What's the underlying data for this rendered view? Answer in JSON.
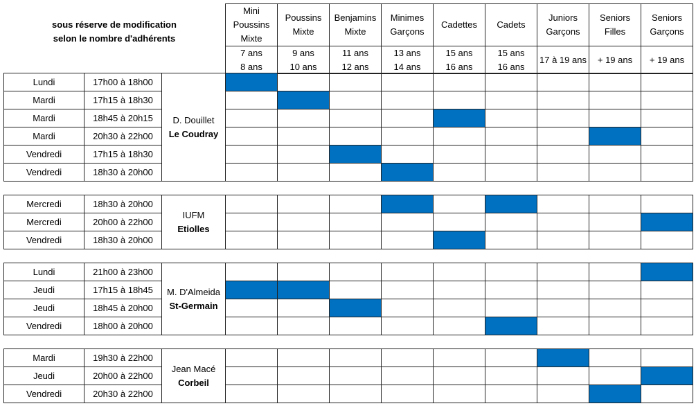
{
  "note": [
    "sous réserve de modification",
    "selon le nombre d'adhérents"
  ],
  "categories": [
    {
      "name": [
        "Mini",
        "Poussins",
        "Mixte"
      ],
      "ages": [
        "7 ans",
        "8 ans"
      ]
    },
    {
      "name": [
        "Poussins",
        "Mixte"
      ],
      "ages": [
        "9 ans",
        "10 ans"
      ]
    },
    {
      "name": [
        "Benjamins",
        "Mixte"
      ],
      "ages": [
        "11 ans",
        "12 ans"
      ]
    },
    {
      "name": [
        "Minimes",
        "Garçons"
      ],
      "ages": [
        "13 ans",
        "14 ans"
      ]
    },
    {
      "name": [
        "Cadettes"
      ],
      "ages": [
        "15 ans",
        "16 ans"
      ]
    },
    {
      "name": [
        "Cadets"
      ],
      "ages": [
        "15 ans",
        "16 ans"
      ]
    },
    {
      "name": [
        "Juniors",
        "Garçons"
      ],
      "ages": [
        "17 à 19 ans"
      ]
    },
    {
      "name": [
        "Seniors",
        "Filles"
      ],
      "ages": [
        "+ 19 ans"
      ]
    },
    {
      "name": [
        "Seniors",
        "Garçons"
      ],
      "ages": [
        "+ 19 ans"
      ]
    }
  ],
  "groups": [
    {
      "venue": "D. Douillet",
      "place": "Le Coudray",
      "sessions": [
        {
          "day": "Lundi",
          "time": "17h00 à 18h00",
          "slots": [
            true,
            false,
            false,
            false,
            false,
            false,
            false,
            false,
            false
          ]
        },
        {
          "day": "Mardi",
          "time": "17h15 à 18h30",
          "slots": [
            false,
            true,
            false,
            false,
            false,
            false,
            false,
            false,
            false
          ]
        },
        {
          "day": "Mardi",
          "time": "18h45 à 20h15",
          "slots": [
            false,
            false,
            false,
            false,
            true,
            false,
            false,
            false,
            false
          ]
        },
        {
          "day": "Mardi",
          "time": "20h30 à 22h00",
          "slots": [
            false,
            false,
            false,
            false,
            false,
            false,
            false,
            true,
            false
          ]
        },
        {
          "day": "Vendredi",
          "time": "17h15 à 18h30",
          "slots": [
            false,
            false,
            true,
            false,
            false,
            false,
            false,
            false,
            false
          ]
        },
        {
          "day": "Vendredi",
          "time": "18h30 à 20h00",
          "slots": [
            false,
            false,
            false,
            true,
            false,
            false,
            false,
            false,
            false
          ]
        }
      ]
    },
    {
      "venue": "IUFM",
      "place": "Etiolles",
      "sessions": [
        {
          "day": "Mercredi",
          "time": "18h30 à 20h00",
          "slots": [
            false,
            false,
            false,
            true,
            false,
            true,
            false,
            false,
            false
          ]
        },
        {
          "day": "Mercredi",
          "time": "20h00 à 22h00",
          "slots": [
            false,
            false,
            false,
            false,
            false,
            false,
            false,
            false,
            true
          ]
        },
        {
          "day": "Vendredi",
          "time": "18h30 à 20h00",
          "slots": [
            false,
            false,
            false,
            false,
            true,
            false,
            false,
            false,
            false
          ]
        }
      ]
    },
    {
      "venue": "M. D'Almeida",
      "place": "St-Germain",
      "sessions": [
        {
          "day": "Lundi",
          "time": "21h00 à 23h00",
          "slots": [
            false,
            false,
            false,
            false,
            false,
            false,
            false,
            false,
            true
          ]
        },
        {
          "day": "Jeudi",
          "time": "17h15 à 18h45",
          "slots": [
            true,
            true,
            false,
            false,
            false,
            false,
            false,
            false,
            false
          ]
        },
        {
          "day": "Jeudi",
          "time": "18h45 à 20h00",
          "slots": [
            false,
            false,
            true,
            false,
            false,
            false,
            false,
            false,
            false
          ]
        },
        {
          "day": "Vendredi",
          "time": "18h00 à 20h00",
          "slots": [
            false,
            false,
            false,
            false,
            false,
            true,
            false,
            false,
            false
          ]
        }
      ]
    },
    {
      "venue": "Jean Macé",
      "place": "Corbeil",
      "sessions": [
        {
          "day": "Mardi",
          "time": "19h30 à 22h00",
          "slots": [
            false,
            false,
            false,
            false,
            false,
            false,
            true,
            false,
            false
          ]
        },
        {
          "day": "Jeudi",
          "time": "20h00 à 22h00",
          "slots": [
            false,
            false,
            false,
            false,
            false,
            false,
            false,
            false,
            true
          ]
        },
        {
          "day": "Vendredi",
          "time": "20h30 à 22h00",
          "slots": [
            false,
            false,
            false,
            false,
            false,
            false,
            false,
            true,
            false
          ]
        }
      ]
    }
  ]
}
